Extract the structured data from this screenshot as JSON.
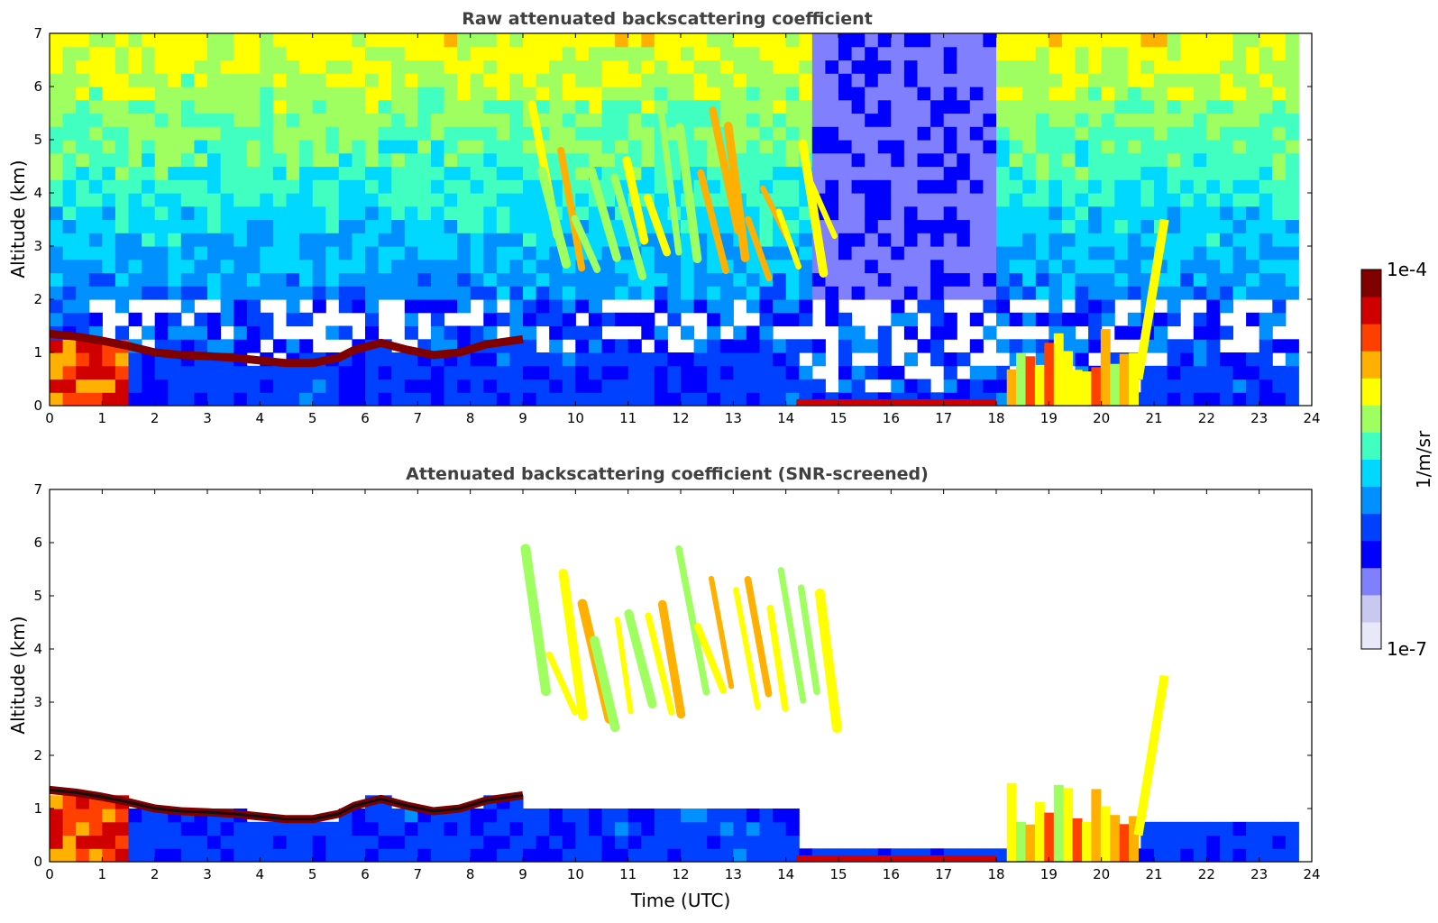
{
  "chart_data": [
    {
      "type": "heatmap",
      "title": "Raw attenuated backscattering coefficient",
      "xlabel": "",
      "ylabel": "Altitude (km)",
      "xlim": [
        0,
        24
      ],
      "ylim": [
        0,
        7
      ],
      "xticks": [
        "0",
        "1",
        "2",
        "3",
        "4",
        "5",
        "6",
        "7",
        "8",
        "9",
        "10",
        "11",
        "12",
        "13",
        "14",
        "15",
        "16",
        "17",
        "18",
        "19",
        "20",
        "21",
        "22",
        "23",
        "24"
      ],
      "yticks": [
        "0",
        "1",
        "2",
        "3",
        "4",
        "5",
        "6",
        "7"
      ],
      "screened": false,
      "features": [
        {
          "kind": "boundary_layer_top",
          "points": [
            [
              0.0,
              1.35
            ],
            [
              0.5,
              1.3
            ],
            [
              1.0,
              1.22
            ],
            [
              1.5,
              1.12
            ],
            [
              2.0,
              1.0
            ],
            [
              2.5,
              0.95
            ],
            [
              3.0,
              0.93
            ],
            [
              3.5,
              0.9
            ],
            [
              4.0,
              0.85
            ],
            [
              4.5,
              0.8
            ],
            [
              5.0,
              0.8
            ],
            [
              5.5,
              0.9
            ],
            [
              5.8,
              1.05
            ],
            [
              6.3,
              1.18
            ],
            [
              6.8,
              1.05
            ],
            [
              7.3,
              0.95
            ],
            [
              7.8,
              1.0
            ],
            [
              8.3,
              1.15
            ],
            [
              9.0,
              1.25
            ]
          ],
          "level": 0.95
        },
        {
          "kind": "ground_layer",
          "x": [
            14.2,
            18.0
          ],
          "top_km": 0.12,
          "level": 0.9
        },
        {
          "kind": "convective_cloud",
          "x": [
            18.2,
            20.7
          ],
          "top_km": 1.6,
          "level": 0.85
        },
        {
          "kind": "rising_cloud",
          "points": [
            [
              20.7,
              0.5
            ],
            [
              21.2,
              3.5
            ]
          ],
          "level": 0.7
        },
        {
          "kind": "virga_streaks",
          "x": [
            9.0,
            14.8
          ],
          "alt": [
            2.3,
            5.9
          ],
          "level": 0.75
        },
        {
          "kind": "blocked_signal",
          "x": [
            14.6,
            18.0
          ],
          "level": 0.1
        }
      ]
    },
    {
      "type": "heatmap",
      "title": "Attenuated backscattering coefficient (SNR-screened)",
      "xlabel": "Time (UTC)",
      "ylabel": "Altitude (km)",
      "xlim": [
        0,
        24
      ],
      "ylim": [
        0,
        7
      ],
      "xticks": [
        "0",
        "1",
        "2",
        "3",
        "4",
        "5",
        "6",
        "7",
        "8",
        "9",
        "10",
        "11",
        "12",
        "13",
        "14",
        "15",
        "16",
        "17",
        "18",
        "19",
        "20",
        "21",
        "22",
        "23",
        "24"
      ],
      "yticks": [
        "0",
        "1",
        "2",
        "3",
        "4",
        "5",
        "6",
        "7"
      ],
      "screened": true,
      "features": [
        {
          "kind": "boundary_layer_top",
          "points": [
            [
              0.0,
              1.35
            ],
            [
              0.5,
              1.3
            ],
            [
              1.0,
              1.22
            ],
            [
              1.5,
              1.12
            ],
            [
              2.0,
              1.0
            ],
            [
              2.5,
              0.95
            ],
            [
              3.0,
              0.93
            ],
            [
              3.5,
              0.9
            ],
            [
              4.0,
              0.85
            ],
            [
              4.5,
              0.8
            ],
            [
              5.0,
              0.8
            ],
            [
              5.5,
              0.9
            ],
            [
              5.8,
              1.05
            ],
            [
              6.3,
              1.18
            ],
            [
              6.8,
              1.05
            ],
            [
              7.3,
              0.95
            ],
            [
              7.8,
              1.0
            ],
            [
              8.3,
              1.15
            ],
            [
              9.0,
              1.25
            ]
          ],
          "level": 0.95
        },
        {
          "kind": "ground_layer",
          "x": [
            14.2,
            18.0
          ],
          "top_km": 0.12,
          "level": 0.9
        },
        {
          "kind": "convective_cloud",
          "x": [
            18.2,
            20.7
          ],
          "top_km": 1.6,
          "level": 0.85
        },
        {
          "kind": "rising_cloud",
          "points": [
            [
              20.7,
              0.5
            ],
            [
              21.2,
              3.5
            ]
          ],
          "level": 0.7
        },
        {
          "kind": "virga_streaks",
          "x": [
            9.0,
            14.8
          ],
          "alt": [
            2.3,
            5.9
          ],
          "level": 0.75
        }
      ]
    }
  ],
  "colorbar": {
    "label": "1/m/sr",
    "max_label": "1e-4",
    "min_label": "1e-7",
    "colormap": [
      "#e8e8f8",
      "#c8c8f0",
      "#8080ff",
      "#0000ff",
      "#0040ff",
      "#0090ff",
      "#00d8ff",
      "#40ffc0",
      "#a0ff60",
      "#ffff00",
      "#ffb000",
      "#ff4000",
      "#d00000",
      "#800000"
    ]
  }
}
